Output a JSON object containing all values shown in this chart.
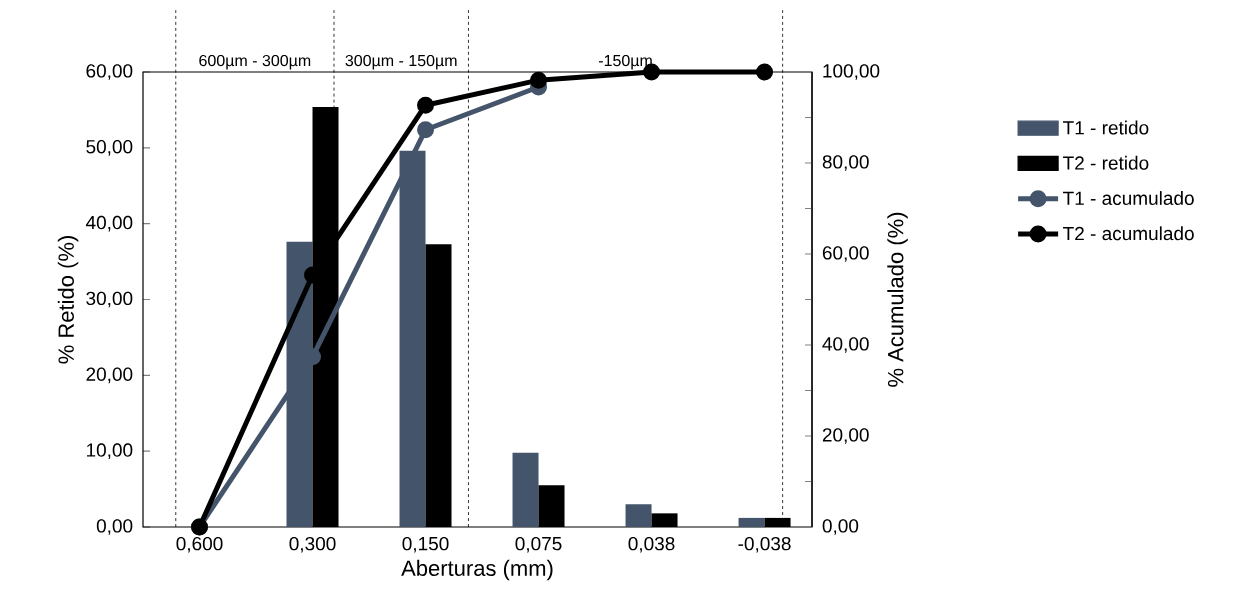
{
  "chart_data": {
    "type": "bar",
    "categories": [
      "0,600",
      "0,300",
      "0,150",
      "0,075",
      "0,038",
      "-0,038"
    ],
    "xlabel": "Aberturas (mm)",
    "ylabel": "% Retido (%)",
    "y2label": "% Acumulado (%)",
    "ylim": [
      0,
      60
    ],
    "yticks": [
      {
        "value": 0,
        "label": "0,00"
      },
      {
        "value": 10,
        "label": "10,00"
      },
      {
        "value": 20,
        "label": "20,00"
      },
      {
        "value": 30,
        "label": "30,00"
      },
      {
        "value": 40,
        "label": "40,00"
      },
      {
        "value": 50,
        "label": "50,00"
      },
      {
        "value": 60,
        "label": "60,00"
      }
    ],
    "y2lim": [
      0,
      100
    ],
    "y2ticks": [
      {
        "value": 0,
        "label": "0,00"
      },
      {
        "value": 20,
        "label": "20,00"
      },
      {
        "value": 40,
        "label": "40,00"
      },
      {
        "value": 60,
        "label": "60,00"
      },
      {
        "value": 80,
        "label": "80,00"
      },
      {
        "value": 100,
        "label": "100,00"
      }
    ],
    "legend": "right",
    "marker": "circle",
    "annotations": [
      "600µm - 300µm",
      "300µm - 150µm",
      "-150µm"
    ],
    "series": [
      {
        "name": "T1 - retido",
        "color": "#44546a",
        "values": [
          0,
          37.6,
          49.6,
          9.8,
          3.0,
          1.2
        ]
      },
      {
        "name": "T2 - retido",
        "color": "#000000",
        "values": [
          0,
          55.4,
          37.3,
          5.5,
          1.8,
          1.2
        ]
      },
      {
        "name": "T1 - acumulado",
        "type": "line",
        "axis": "y2",
        "color": "#44546a",
        "values": [
          0,
          37.4,
          87.3,
          96.7,
          null,
          null
        ]
      },
      {
        "name": "T2 - acumulado",
        "type": "line",
        "axis": "y2",
        "color": "#000000",
        "values": [
          0,
          55.4,
          92.7,
          98.2,
          100,
          100
        ]
      }
    ]
  }
}
